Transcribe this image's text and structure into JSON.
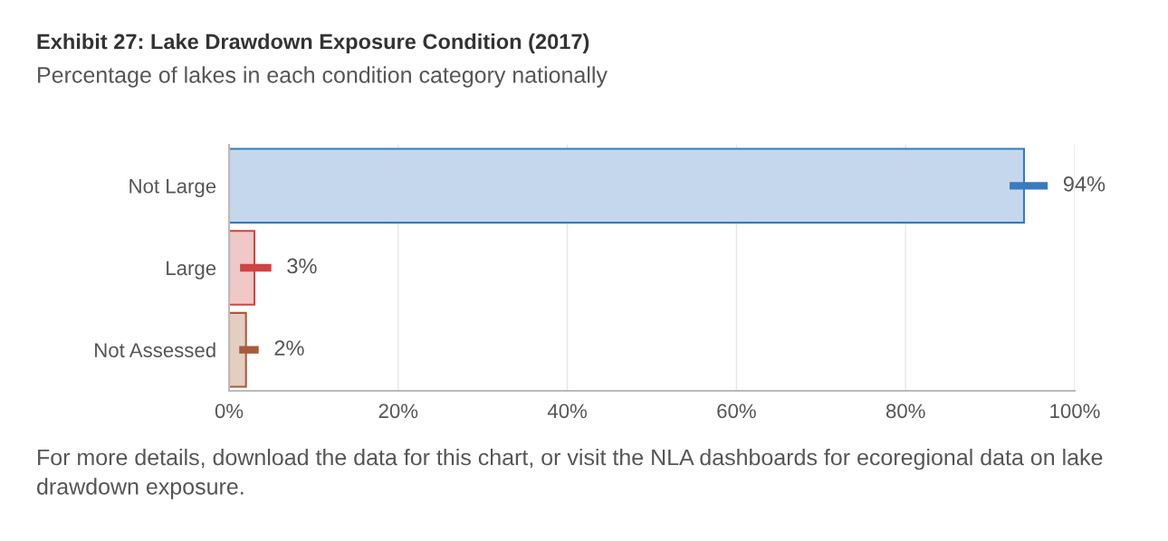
{
  "chart_data": {
    "type": "bar",
    "orientation": "horizontal",
    "title": "Exhibit 27: Lake Drawdown Exposure Condition (2017)",
    "subtitle": "Percentage of lakes in each condition category nationally",
    "categories": [
      "Not Large",
      "Large",
      "Not Assessed"
    ],
    "values": [
      94,
      3,
      2
    ],
    "errors": [
      [
        92.3,
        96.8
      ],
      [
        1.3,
        5.0
      ],
      [
        1.2,
        3.5
      ]
    ],
    "value_labels": [
      "94%",
      "3%",
      "2%"
    ],
    "colors": [
      "#3a7abf",
      "#d04344",
      "#a65c3a"
    ],
    "xlim": [
      0,
      100
    ],
    "xticks": [
      {
        "value": 0,
        "label": "0%"
      },
      {
        "value": 20,
        "label": "20%"
      },
      {
        "value": 40,
        "label": "40%"
      },
      {
        "value": 60,
        "label": "60%"
      },
      {
        "value": 80,
        "label": "80%"
      },
      {
        "value": 100,
        "label": "100%"
      }
    ],
    "grid": "x",
    "legend": false,
    "annotations": [
      "For more details, download the data for this chart, or visit the NLA dashboards for ecoregional data on lake drawdown exposure."
    ]
  }
}
